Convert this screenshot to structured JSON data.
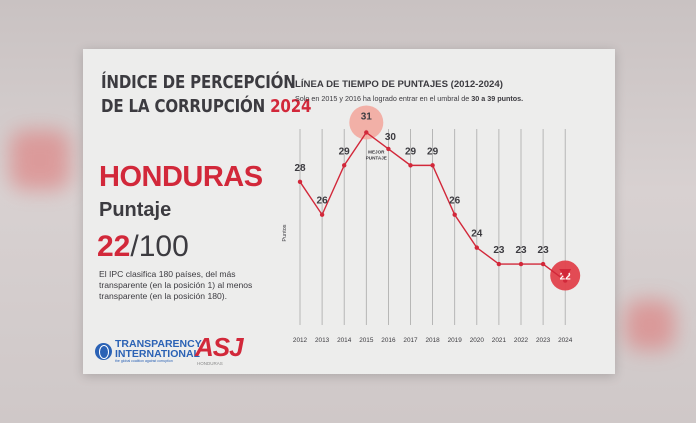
{
  "card": {
    "title_line1": "ÍNDICE DE PERCEPCIÓN",
    "title_line2_prefix": "DE LA CORRUPCIÓN",
    "title_year": "2024",
    "country": "HONDURAS",
    "score_label": "Puntaje",
    "score_value": "22",
    "score_max": "/100",
    "description": "El IPC clasifica 180 países, del más transparente (en la posición 1) al menos transparente (en la posición 180).",
    "logo_ti_line1": "TRANSPARENCY",
    "logo_ti_line2": "INTERNATIONAL",
    "logo_ti_tagline": "the global coalition against corruption",
    "logo_asj": "ASJ",
    "logo_asj_sub": "HONDURAS"
  },
  "chart_header": {
    "title": "LÍNEA DE TIEMPO DE PUNTAJES (2012-2024)",
    "subtitle_prefix": "Solo en 2015 y 2016 ha logrado entrar en el umbral de ",
    "subtitle_bold": "30 a 39 puntos."
  },
  "colors": {
    "accent": "#d2283a",
    "text": "#3c3b40",
    "highlight_fill": "#f2a8a0",
    "latest_fill": "#e1424c"
  },
  "chart_data": {
    "type": "line",
    "x": [
      "2012",
      "2013",
      "2014",
      "2015",
      "2016",
      "2017",
      "2018",
      "2019",
      "2020",
      "2021",
      "2022",
      "2023",
      "2024"
    ],
    "series": [
      {
        "values": [
          28,
          26,
          29,
          31,
          30,
          29,
          29,
          26,
          24,
          23,
          23,
          23,
          22
        ]
      }
    ],
    "ylabel": "Puntos",
    "ylim": [
      21,
      32
    ],
    "grid": "vertical",
    "annotations": [
      {
        "x": "2015",
        "text": "MEJOR PUNTAJE"
      }
    ],
    "highlights": {
      "best": "2015",
      "latest": "2024"
    }
  }
}
